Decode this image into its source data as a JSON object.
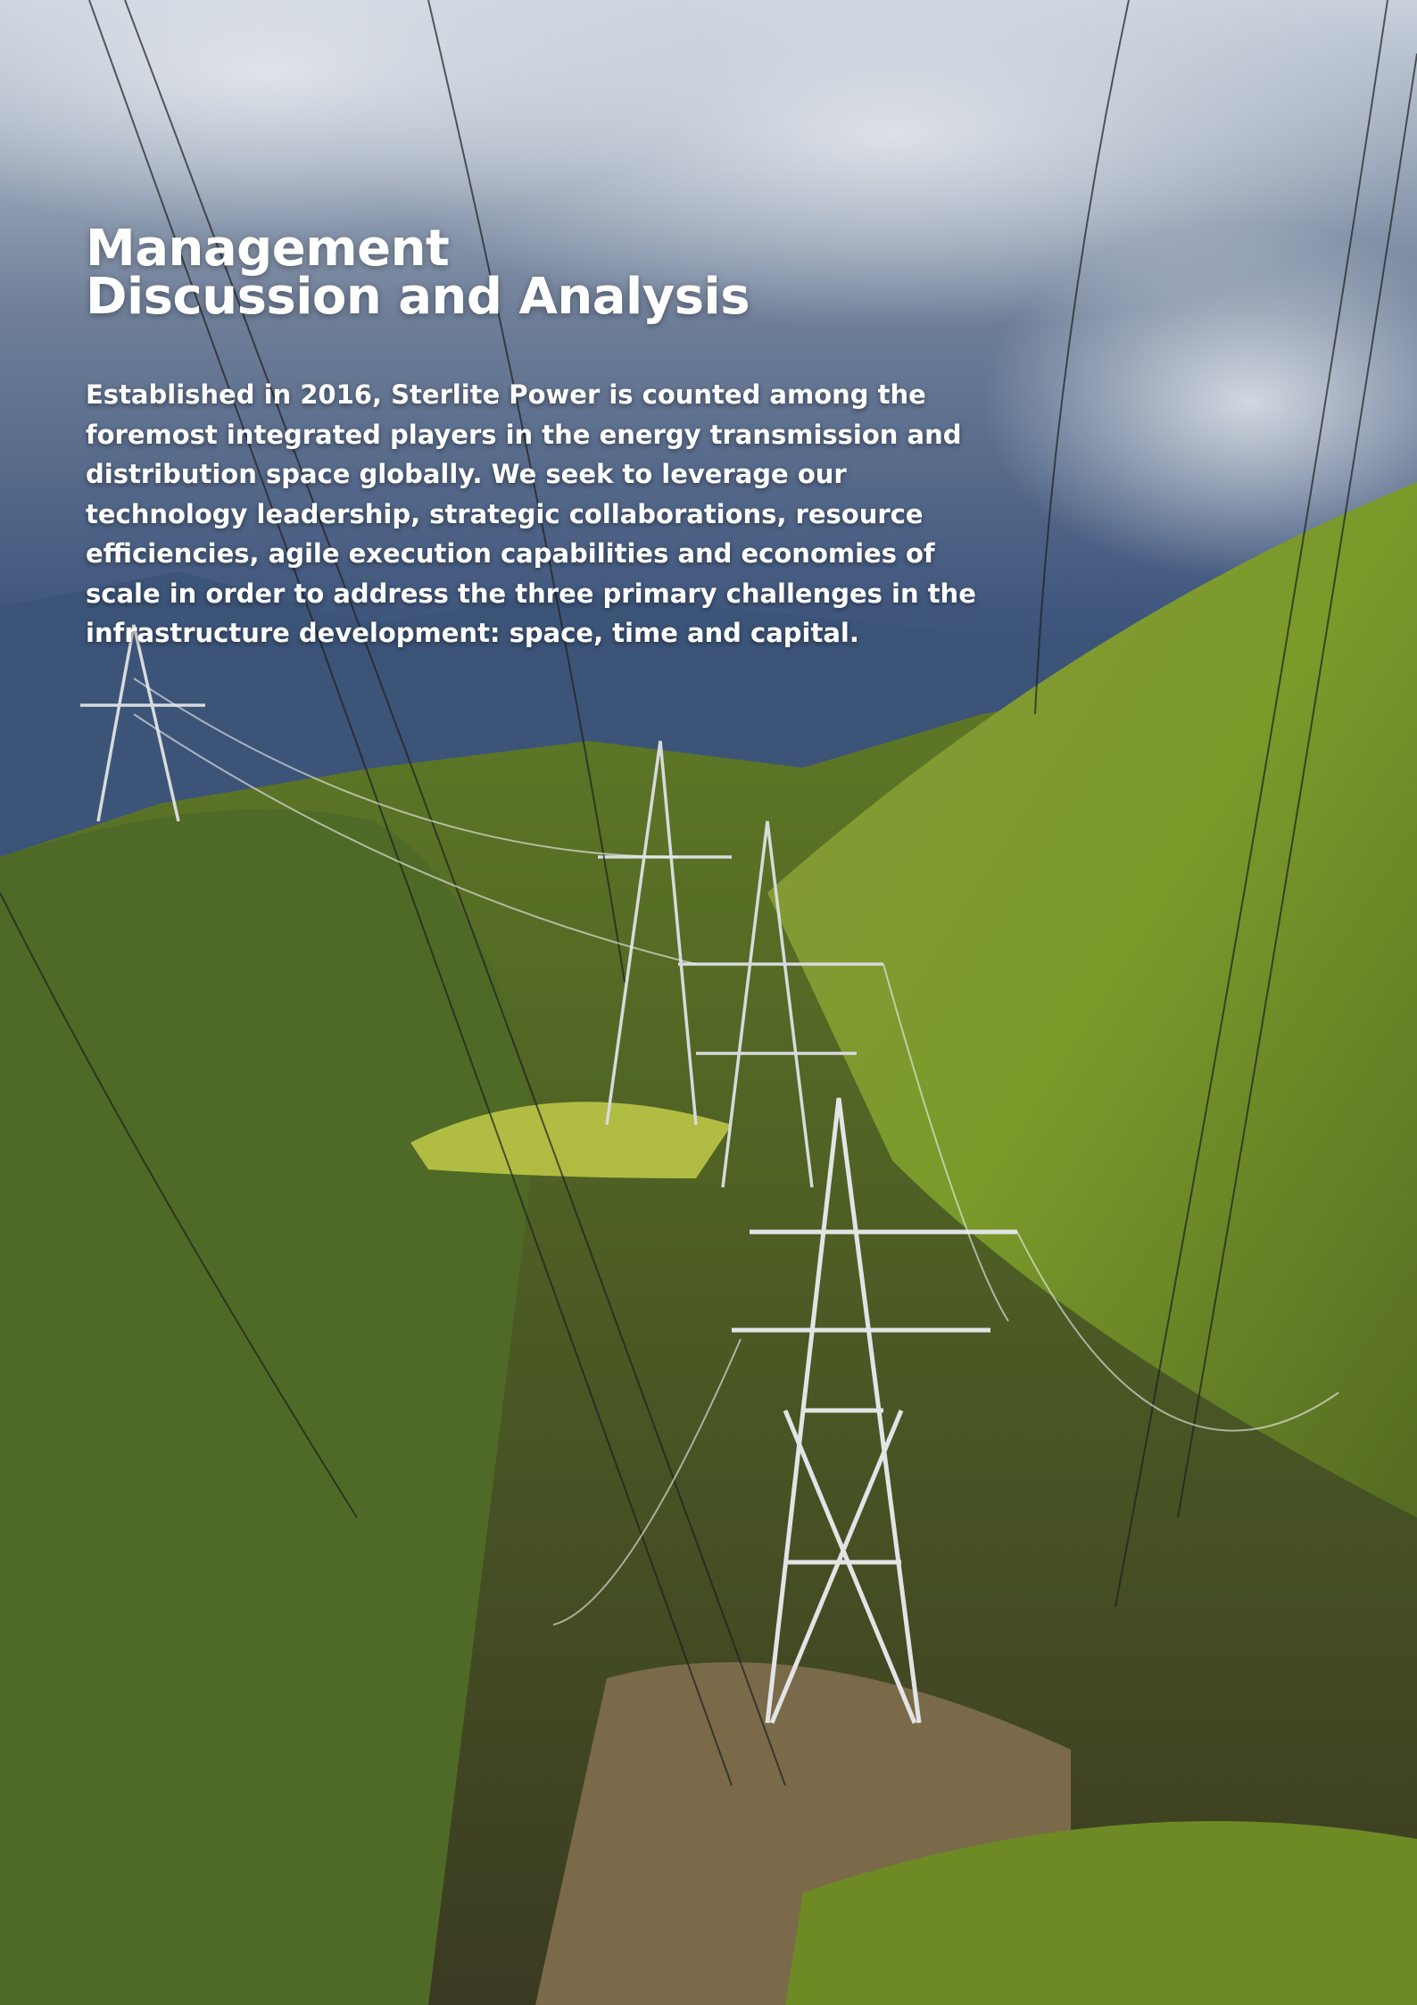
{
  "header": {
    "title_lines": [
      "Management",
      "Discussion and Analysis"
    ]
  },
  "body": {
    "text": "Established in 2016, Sterlite Power is counted among the foremost integrated players in the energy transmission and distribution space globally. We seek to leverage our technology leadership, strategic collaborations, resource efficiencies, agile execution capabilities and economies of scale in order to address the three primary challenges in the infrastructure development: space, time and capital."
  }
}
